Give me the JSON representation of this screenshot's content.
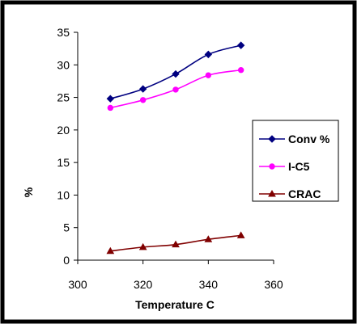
{
  "chart_data": {
    "type": "line",
    "title": "",
    "xlabel": "Temperature C",
    "ylabel": "%",
    "xlim": [
      300,
      360
    ],
    "ylim": [
      0,
      35
    ],
    "xticks": [
      300,
      320,
      340,
      360
    ],
    "yticks": [
      0,
      5,
      10,
      15,
      20,
      25,
      30,
      35
    ],
    "grid": false,
    "legend_position": "right",
    "series": [
      {
        "name": "Conv %",
        "color": "#000080",
        "marker": "diamond",
        "x": [
          310,
          320,
          330,
          340,
          350
        ],
        "y": [
          24.8,
          26.3,
          28.6,
          31.6,
          33.0
        ]
      },
      {
        "name": "I-C5",
        "color": "#ff00ff",
        "marker": "circle",
        "x": [
          310,
          320,
          330,
          340,
          350
        ],
        "y": [
          23.4,
          24.6,
          26.2,
          28.4,
          29.2
        ]
      },
      {
        "name": "CRAC",
        "color": "#800000",
        "marker": "triangle",
        "x": [
          310,
          320,
          330,
          340,
          350
        ],
        "y": [
          1.4,
          2.0,
          2.4,
          3.2,
          3.8
        ]
      }
    ]
  }
}
